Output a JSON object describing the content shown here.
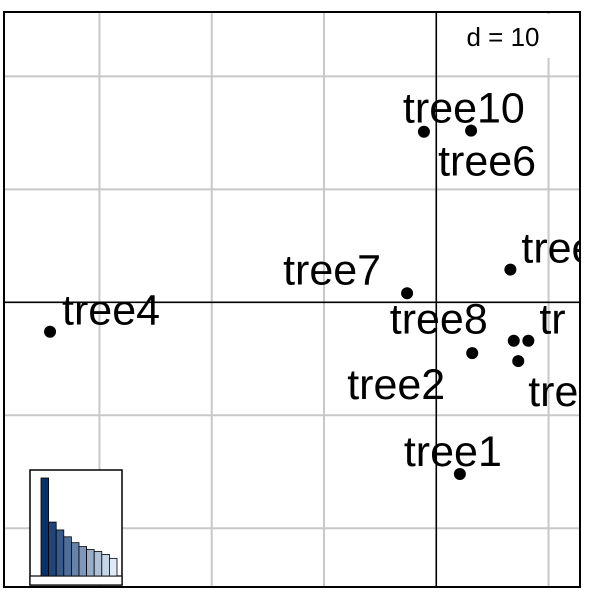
{
  "chart_data": {
    "type": "scatter",
    "scale_label": "d = 10",
    "grid": true,
    "grid_step": 10,
    "xlim": [
      -38.5,
      12.8
    ],
    "ylim": [
      -25.2,
      25.7
    ],
    "points": [
      {
        "label": "tree10",
        "x": -1.1,
        "y": 15.1
      },
      {
        "label": "tree6",
        "x": 3.1,
        "y": 15.2
      },
      {
        "label": "tree7",
        "x": -2.6,
        "y": 0.8
      },
      {
        "label": "tree4",
        "x": -34.4,
        "y": -2.6
      },
      {
        "label": "tree",
        "x": 6.6,
        "y": 2.9
      },
      {
        "label": "tree8",
        "x": 6.9,
        "y": -3.4
      },
      {
        "label": "tr",
        "x": 8.2,
        "y": -3.4
      },
      {
        "label": "tree2",
        "x": 3.2,
        "y": -4.5
      },
      {
        "label": "tre",
        "x": 7.3,
        "y": -5.2
      },
      {
        "label": "tree1",
        "x": 2.1,
        "y": -15.2
      }
    ],
    "eigenvalues": [
      100,
      55,
      47,
      40,
      34,
      30,
      27,
      25,
      22,
      18
    ]
  },
  "colors": {
    "axis": "#000000",
    "grid": "#c8c8c8",
    "eig_dark": "#08306b",
    "eig_light": "#deebf7"
  }
}
